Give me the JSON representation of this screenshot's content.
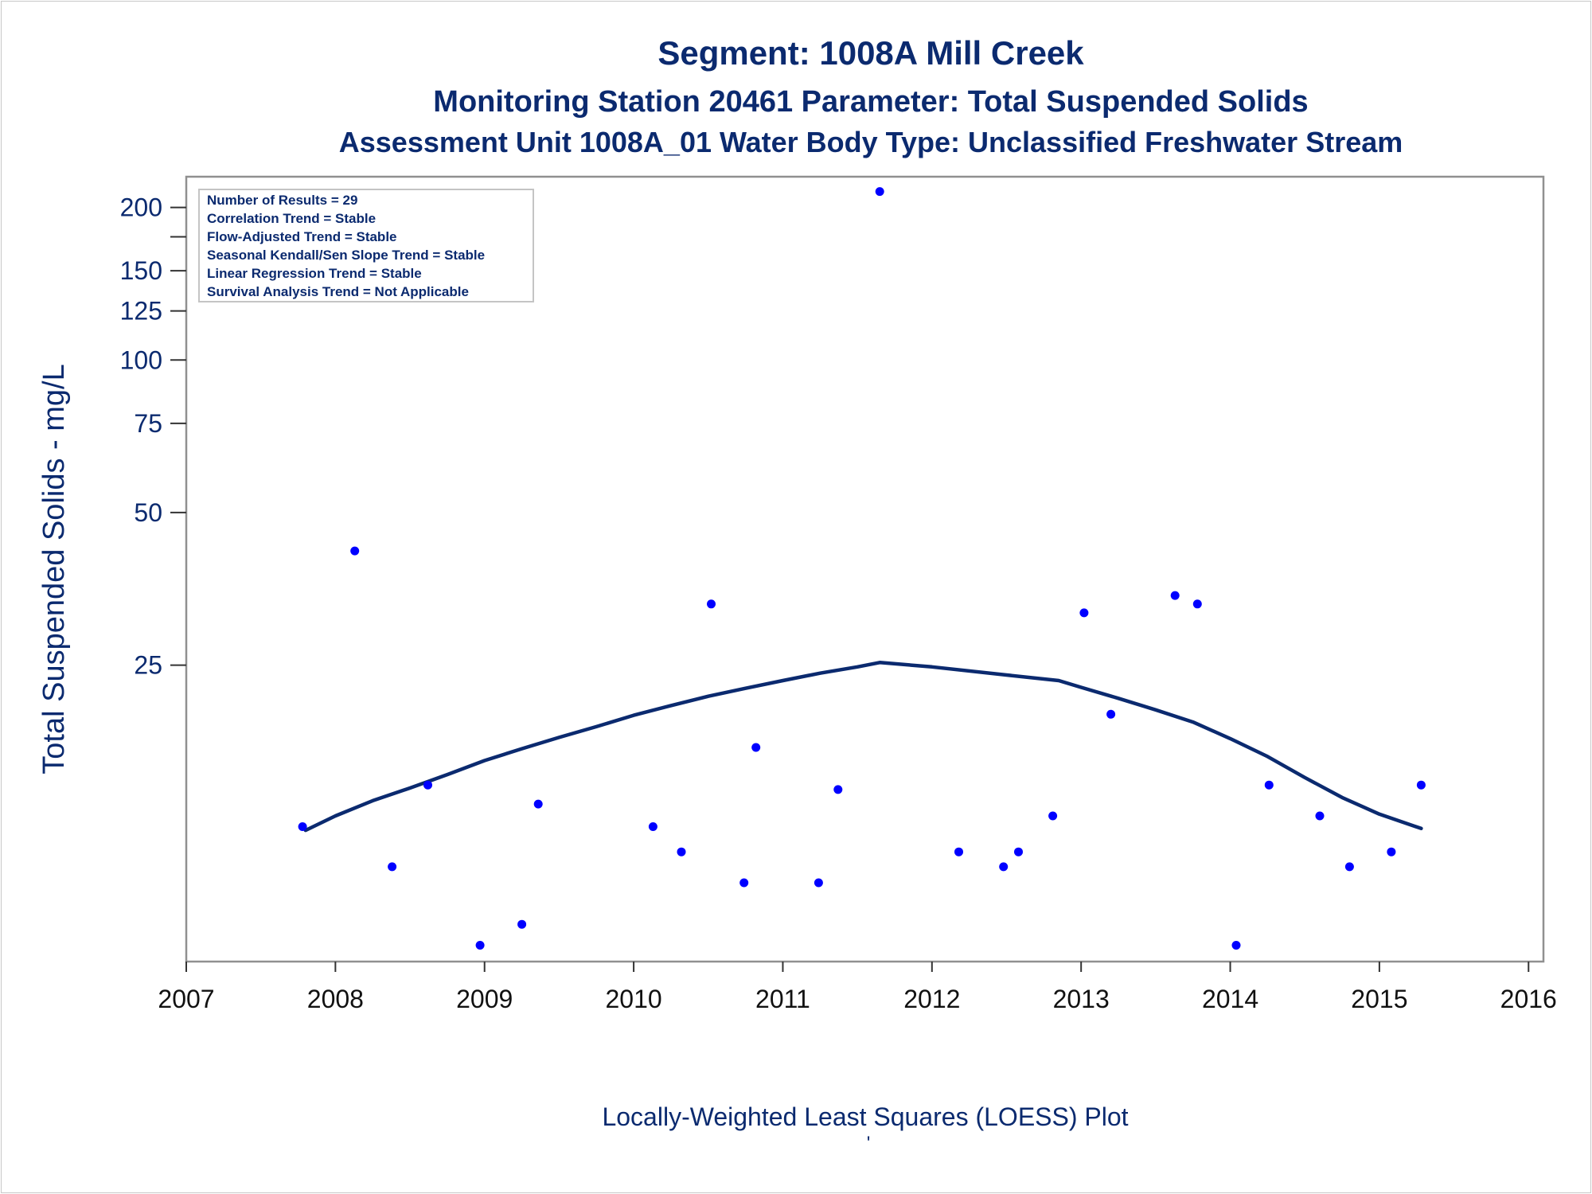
{
  "titles": {
    "line1": "Segment: 1008A  Mill Creek",
    "line2": "Monitoring Station 20461 Parameter: Total Suspended Solids",
    "line3": "Assessment Unit 1008A_01   Water Body Type: Unclassified Freshwater Stream"
  },
  "stats_box": [
    "Number of Results = 29",
    "Correlation Trend = Stable",
    "Flow-Adjusted Trend = Stable",
    "Seasonal Kendall/Sen Slope Trend = Stable",
    "Linear Regression Trend = Stable",
    "Survival Analysis Trend = Not Applicable"
  ],
  "footnote": "'",
  "colors": {
    "text": "#0b2a6f",
    "points": "#0000ff",
    "curve": "#0b2a6f",
    "frame": "#909090"
  },
  "chart_data": {
    "type": "scatter",
    "xlabel": "Locally-Weighted Least Squares (LOESS) Plot",
    "ylabel": "Total Suspended Solids - mg/L",
    "yscale": "log",
    "xlim": [
      2007.0,
      2016.1
    ],
    "ylim": [
      6.5,
      230
    ],
    "x_ticks": [
      2007,
      2008,
      2009,
      2010,
      2011,
      2012,
      2013,
      2014,
      2015,
      2016
    ],
    "x_tick_labels": [
      "2007",
      "2008",
      "2009",
      "2010",
      "2011",
      "2012",
      "2013",
      "2014",
      "2015",
      "2016"
    ],
    "y_ticks": [
      25,
      50,
      75,
      100,
      125,
      150,
      175,
      200
    ],
    "y_tick_labels": [
      "25",
      "50",
      "75",
      "100",
      "125",
      "150",
      "",
      "200"
    ],
    "grid": false,
    "series": [
      {
        "kind": "points",
        "x": [
          2007.78,
          2008.13,
          2008.38,
          2008.62,
          2008.97,
          2009.25,
          2009.36,
          2010.13,
          2010.32,
          2010.52,
          2010.74,
          2010.82,
          2011.24,
          2011.37,
          2011.65,
          2012.18,
          2012.48,
          2012.58,
          2012.81,
          2013.02,
          2013.2,
          2013.63,
          2013.78,
          2014.04,
          2014.26,
          2014.6,
          2014.8,
          2015.08,
          2015.28
        ],
        "y": [
          12,
          42,
          10,
          14.5,
          7,
          7.7,
          13.3,
          12,
          10.7,
          33,
          9.3,
          17.2,
          9.3,
          14.2,
          215,
          10.7,
          10,
          10.7,
          12.6,
          31.7,
          20,
          34.3,
          33,
          7,
          14.5,
          12.6,
          10,
          10.7,
          14.5
        ]
      },
      {
        "kind": "line",
        "x": [
          2007.8,
          2008.0,
          2008.25,
          2008.5,
          2008.75,
          2009.0,
          2009.25,
          2009.5,
          2009.75,
          2010.0,
          2010.25,
          2010.5,
          2010.75,
          2011.0,
          2011.25,
          2011.5,
          2011.65,
          2012.0,
          2012.5,
          2012.85,
          2013.0,
          2013.25,
          2013.5,
          2013.75,
          2014.0,
          2014.25,
          2014.5,
          2014.75,
          2015.0,
          2015.28
        ],
        "y": [
          11.8,
          12.6,
          13.5,
          14.3,
          15.2,
          16.2,
          17.1,
          18.0,
          18.9,
          19.9,
          20.8,
          21.7,
          22.5,
          23.3,
          24.1,
          24.8,
          25.3,
          24.8,
          23.9,
          23.3,
          22.6,
          21.5,
          20.4,
          19.3,
          17.9,
          16.5,
          15.0,
          13.7,
          12.7,
          11.9
        ]
      }
    ]
  }
}
